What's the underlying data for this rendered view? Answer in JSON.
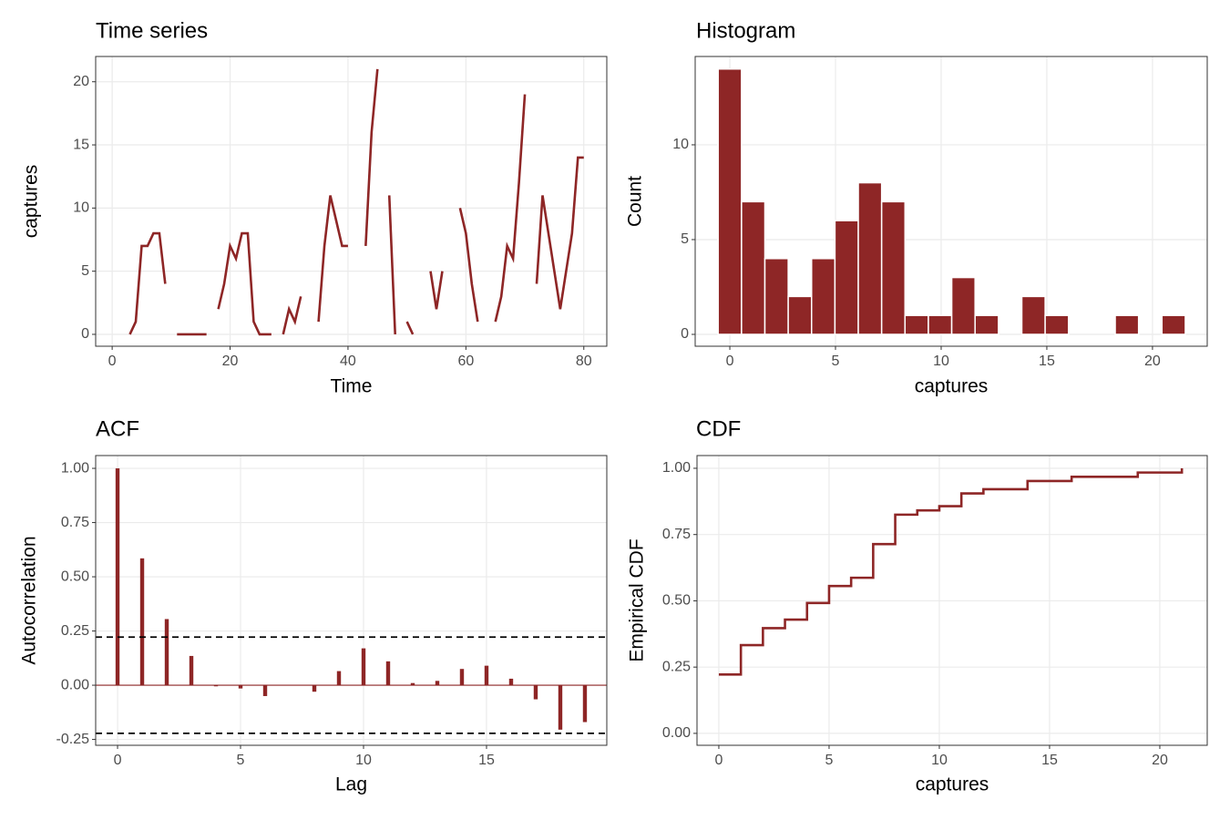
{
  "chart_data": [
    {
      "type": "line",
      "title": "Time series",
      "x_label": "Time",
      "y_label": "captures",
      "color": "#8e2626",
      "x": [
        1,
        2,
        3,
        4,
        5,
        6,
        7,
        8,
        9,
        10,
        11,
        12,
        13,
        14,
        15,
        16,
        17,
        18,
        19,
        20,
        21,
        22,
        23,
        24,
        25,
        26,
        27,
        28,
        29,
        30,
        31,
        32,
        33,
        34,
        35,
        36,
        37,
        38,
        39,
        40,
        41,
        42,
        43,
        44,
        45,
        46,
        47,
        48,
        49,
        50,
        51,
        52,
        53,
        54,
        55,
        56,
        57,
        58,
        59,
        60,
        61,
        62,
        63,
        64,
        65,
        66,
        67,
        68,
        69,
        70,
        71,
        72,
        73,
        74,
        75,
        76,
        77,
        78,
        79,
        80
      ],
      "values": [
        null,
        null,
        0,
        1,
        7,
        7,
        8,
        8,
        4,
        null,
        0,
        0,
        0,
        0,
        0,
        0,
        null,
        2,
        4,
        7,
        6,
        8,
        8,
        1,
        0,
        0,
        0,
        null,
        0,
        2,
        1,
        3,
        null,
        null,
        1,
        7,
        11,
        9,
        7,
        7,
        null,
        null,
        7,
        16,
        21,
        null,
        11,
        0,
        null,
        1,
        0,
        null,
        null,
        5,
        2,
        5,
        null,
        null,
        10,
        8,
        4,
        1,
        null,
        null,
        1,
        3,
        7,
        6,
        12,
        19,
        null,
        4,
        11,
        8,
        5,
        2,
        5,
        8,
        14,
        14
      ],
      "xlim": [
        -2.8,
        83.9
      ],
      "ylim": [
        -0.94,
        22.0
      ],
      "xticks": [
        0,
        20,
        40,
        60,
        80
      ],
      "yticks": [
        0,
        5,
        10,
        15,
        20
      ],
      "grid": true
    },
    {
      "type": "histogram",
      "title": "Histogram",
      "x_label": "captures",
      "y_label": "Count",
      "color": "#8e2626",
      "bins": [
        -0.553,
        0.553,
        1.658,
        2.763,
        3.868,
        4.974,
        6.079,
        7.184,
        8.289,
        9.395,
        10.5,
        11.605,
        12.711,
        13.816,
        14.921,
        16.026,
        17.132,
        18.237,
        19.342,
        20.447,
        21.553
      ],
      "values": [
        14,
        7,
        4,
        2,
        4,
        6,
        8,
        7,
        1,
        1,
        3,
        1,
        0,
        2,
        1,
        0,
        0,
        1,
        0,
        1
      ],
      "xlim": [
        -1.64,
        22.59
      ],
      "ylim": [
        -0.625,
        14.66
      ],
      "xticks": [
        0,
        5,
        10,
        15,
        20
      ],
      "yticks": [
        0,
        5,
        10
      ],
      "grid": true
    },
    {
      "type": "bar",
      "title": "ACF",
      "x_label": "Lag",
      "y_label": "Autocorrelation",
      "color": "#8e2626",
      "x": [
        0,
        1,
        2,
        3,
        4,
        5,
        6,
        7,
        8,
        9,
        10,
        11,
        12,
        13,
        14,
        15,
        16,
        17,
        18,
        19
      ],
      "values": [
        1.0,
        0.585,
        0.305,
        0.135,
        -0.005,
        -0.015,
        -0.05,
        0,
        -0.03,
        0.065,
        0.17,
        0.11,
        0.01,
        0.02,
        0.075,
        0.09,
        0.03,
        -0.065,
        -0.205,
        -0.17
      ],
      "ci": [
        0.222,
        -0.222
      ],
      "xlim": [
        -0.89,
        19.89
      ],
      "ylim": [
        -0.277,
        1.059
      ],
      "xticks": [
        0,
        5,
        10,
        15
      ],
      "yticks": [
        {
          "value": -0.25,
          "label": "-0.25"
        },
        {
          "value": 0,
          "label": "0.00"
        },
        {
          "value": 0.25,
          "label": "0.25"
        },
        {
          "value": 0.5,
          "label": "0.50"
        },
        {
          "value": 0.75,
          "label": "0.75"
        },
        {
          "value": 1,
          "label": "1.00"
        }
      ],
      "grid": true
    },
    {
      "type": "step",
      "title": "CDF",
      "x_label": "captures",
      "y_label": "Empirical CDF",
      "color": "#8e2626",
      "x": [
        0,
        1,
        2,
        3,
        4,
        5,
        6,
        7,
        8,
        9,
        10,
        11,
        12,
        13,
        14,
        15,
        16,
        17,
        18,
        19,
        20,
        21
      ],
      "values": [
        0.222,
        0.333,
        0.397,
        0.429,
        0.492,
        0.556,
        0.587,
        0.714,
        0.825,
        0.841,
        0.857,
        0.905,
        0.921,
        0.921,
        0.952,
        0.952,
        0.968,
        0.968,
        0.968,
        0.984,
        0.984,
        1.0
      ],
      "xlim": [
        -0.99,
        22.15
      ],
      "ylim": [
        -0.045,
        1.048
      ],
      "xticks": [
        0,
        5,
        10,
        15,
        20
      ],
      "yticks": [
        {
          "value": 0,
          "label": "0.00"
        },
        {
          "value": 0.25,
          "label": "0.25"
        },
        {
          "value": 0.5,
          "label": "0.50"
        },
        {
          "value": 0.75,
          "label": "0.75"
        },
        {
          "value": 1,
          "label": "1.00"
        }
      ],
      "grid": true
    }
  ]
}
